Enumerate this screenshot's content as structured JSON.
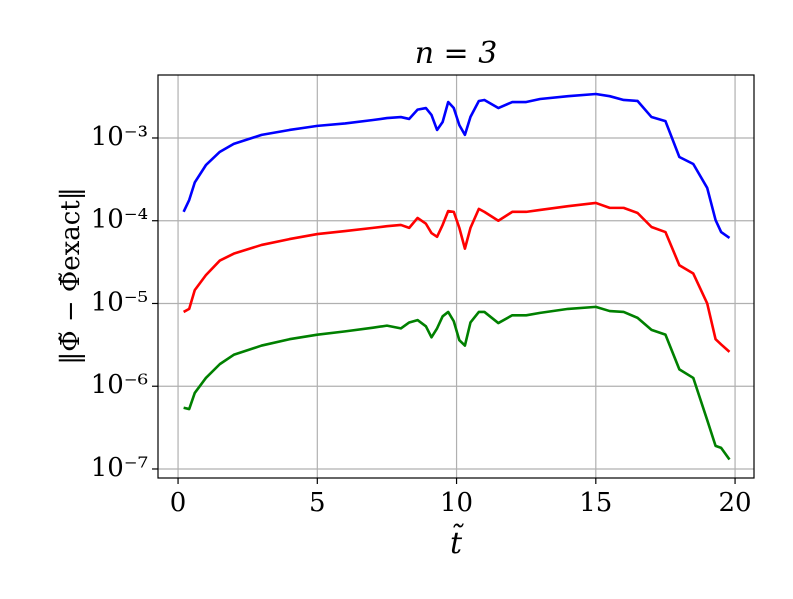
{
  "chart_data": {
    "type": "line",
    "title": "n = 3",
    "xlabel": "t̃",
    "ylabel": "‖Φ̃ − Φ̃exact‖",
    "x": [
      0.2,
      0.4,
      0.6,
      1,
      1.5,
      2,
      3,
      4,
      5,
      6,
      7,
      7.5,
      8,
      8.3,
      8.6,
      8.9,
      9.1,
      9.3,
      9.5,
      9.7,
      9.9,
      10.1,
      10.3,
      10.5,
      10.8,
      11,
      11.5,
      12,
      12.5,
      13,
      14,
      15,
      15.5,
      16,
      16.5,
      17,
      17.5,
      18,
      18.5,
      19,
      19.3,
      19.5,
      19.8
    ],
    "series": [
      {
        "color": "#0000ff",
        "values": [
          0.000128,
          0.000178,
          0.00029,
          0.00047,
          0.00068,
          0.00085,
          0.00109,
          0.00125,
          0.0014,
          0.0015,
          0.00165,
          0.00174,
          0.00179,
          0.0017,
          0.0022,
          0.0023,
          0.0019,
          0.00125,
          0.00156,
          0.00272,
          0.0023,
          0.00143,
          0.00109,
          0.0018,
          0.0028,
          0.00288,
          0.0023,
          0.00272,
          0.00272,
          0.00296,
          0.0032,
          0.0034,
          0.0032,
          0.00288,
          0.0028,
          0.00179,
          0.0016,
          0.000589,
          0.000485,
          0.000249,
          0.000102,
          7.3e-05,
          6.2e-05
        ]
      },
      {
        "color": "#ff0000",
        "values": [
          7.9e-06,
          8.6e-06,
          1.45e-05,
          2.2e-05,
          3.3e-05,
          4e-05,
          5.1e-05,
          6e-05,
          6.9e-05,
          7.5e-05,
          8.2e-05,
          8.6e-05,
          8.9e-05,
          8.2e-05,
          0.000108,
          9.2e-05,
          7.1e-05,
          6.4e-05,
          8.9e-05,
          0.000131,
          0.000128,
          8.2e-05,
          4.6e-05,
          8.2e-05,
          0.000139,
          0.000128,
          0.0001,
          0.000128,
          0.000128,
          0.000135,
          0.00015,
          0.000164,
          0.000143,
          0.000143,
          0.000124,
          8.4e-05,
          7.3e-05,
          2.9e-05,
          2.3e-05,
          1e-05,
          3.7e-06,
          3.2e-06,
          2.6e-06
        ]
      },
      {
        "color": "#008000",
        "values": [
          5.5e-07,
          5.3e-07,
          8.3e-07,
          1.26e-06,
          1.85e-06,
          2.4e-06,
          3.1e-06,
          3.7e-06,
          4.2e-06,
          4.6e-06,
          5.1e-06,
          5.4e-06,
          5e-06,
          5.9e-06,
          6.3e-06,
          5.3e-06,
          3.9e-06,
          5e-06,
          7e-06,
          7.9e-06,
          6.1e-06,
          3.6e-06,
          3.1e-06,
          5.9e-06,
          7.9e-06,
          7.9e-06,
          5.8e-06,
          7.2e-06,
          7.2e-06,
          7.7e-06,
          8.6e-06,
          9.1e-06,
          8.1e-06,
          7.9e-06,
          6.7e-06,
          4.8e-06,
          4.2e-06,
          1.6e-06,
          1.26e-06,
          3.9e-07,
          1.9e-07,
          1.8e-07,
          1.3e-07
        ]
      }
    ],
    "xlim": [
      -0.72,
      20.68
    ],
    "xticks": [
      0,
      5,
      10,
      15,
      20
    ],
    "ylim": [
      7.78e-08,
      0.00577
    ],
    "ylog": true,
    "yticks": [
      {
        "value": 1e-07,
        "label": "10⁻⁷"
      },
      {
        "value": 1e-06,
        "label": "10⁻⁶"
      },
      {
        "value": 1e-05,
        "label": "10⁻⁵"
      },
      {
        "value": 0.0001,
        "label": "10⁻⁴"
      },
      {
        "value": 0.001,
        "label": "10⁻³"
      }
    ],
    "grid": true
  }
}
